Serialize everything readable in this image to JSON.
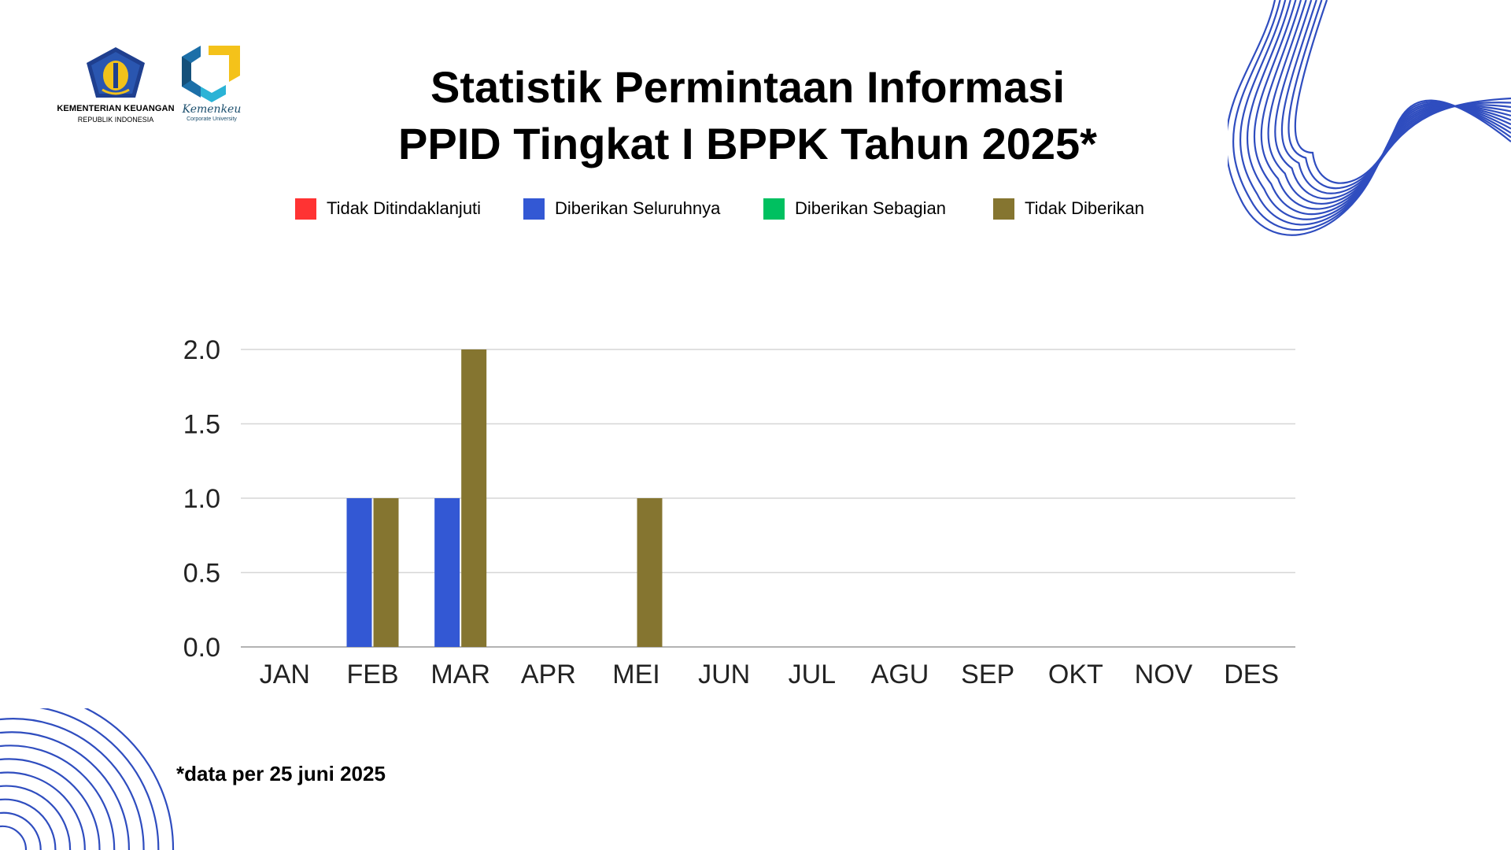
{
  "logos": {
    "kemenkeu": {
      "line1": "KEMENTERIAN KEUANGAN",
      "line2": "REPUBLIK INDONESIA"
    },
    "corpu": {
      "line1": "Kemenkeu",
      "line2": "Corporate University"
    }
  },
  "title_lines": [
    "Statistik Permintaan Informasi",
    "PPID Tingkat I BPPK Tahun 2025*"
  ],
  "footnote": "*data per 25 juni 2025",
  "colors": {
    "accent_decor": "#2f4dbf"
  },
  "chart_data": {
    "type": "bar",
    "title": "Statistik Permintaan Informasi PPID Tingkat I BPPK Tahun 2025*",
    "xlabel": "",
    "ylabel": "",
    "categories": [
      "JAN",
      "FEB",
      "MAR",
      "APR",
      "MEI",
      "JUN",
      "JUL",
      "AGU",
      "SEP",
      "OKT",
      "NOV",
      "DES"
    ],
    "series": [
      {
        "name": "Tidak Ditindaklanjuti",
        "color": "#ff3333",
        "values": [
          0,
          0,
          0,
          0,
          0,
          0,
          0,
          0,
          0,
          0,
          0,
          0
        ]
      },
      {
        "name": "Diberikan Seluruhnya",
        "color": "#3358d4",
        "values": [
          0,
          1,
          1,
          0,
          0,
          0,
          0,
          0,
          0,
          0,
          0,
          0
        ]
      },
      {
        "name": "Diberikan Sebagian",
        "color": "#00c060",
        "values": [
          0,
          0,
          0,
          0,
          0,
          0,
          0,
          0,
          0,
          0,
          0,
          0
        ]
      },
      {
        "name": "Tidak Diberikan",
        "color": "#857530",
        "values": [
          0,
          1,
          2,
          0,
          1,
          0,
          0,
          0,
          0,
          0,
          0,
          0
        ]
      }
    ],
    "ylim": [
      0,
      2
    ],
    "yticks": [
      "0.0",
      "0.5",
      "1.0",
      "1.5",
      "2.0"
    ],
    "grid": true,
    "legend_position": "top"
  }
}
